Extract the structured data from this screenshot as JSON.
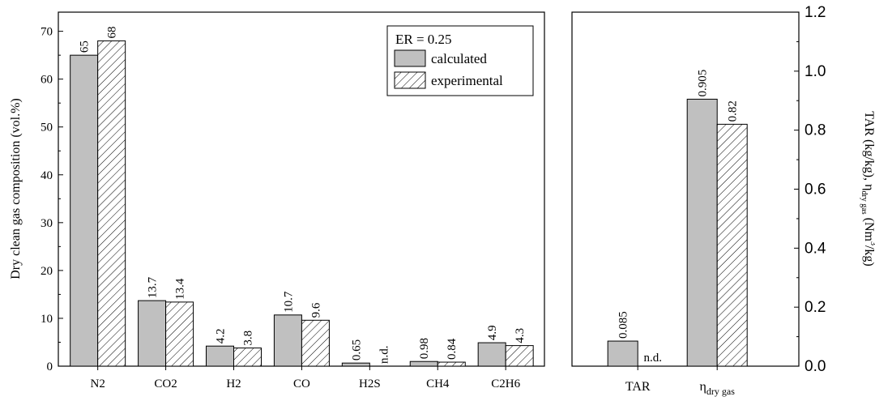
{
  "chart_data": [
    {
      "type": "bar",
      "categories": [
        "N2",
        "CO2",
        "H2",
        "CO",
        "H2S",
        "CH4",
        "C2H6"
      ],
      "series": [
        {
          "name": "calculated",
          "values": [
            65,
            13.7,
            4.2,
            10.7,
            0.65,
            0.98,
            4.9
          ],
          "labels": [
            "65",
            "13.7",
            "4.2",
            "10.7",
            "0.65",
            "0.98",
            "4.9"
          ]
        },
        {
          "name": "experimental",
          "values": [
            68,
            13.4,
            3.8,
            9.6,
            null,
            0.84,
            4.3
          ],
          "labels": [
            "68",
            "13.4",
            "3.8",
            "9.6",
            "n.d.",
            "0.84",
            "4.3"
          ]
        }
      ],
      "ylabel": "Dry clean gas composition (vol.%)",
      "ylim": [
        0,
        74
      ],
      "yticks": [
        0,
        10,
        20,
        30,
        40,
        50,
        60,
        70
      ],
      "legend": {
        "title": "ER = 0.25",
        "placement": "top-right"
      },
      "colors": {
        "calculated": "#c0c0c0",
        "experimental": "hatched"
      }
    },
    {
      "type": "bar",
      "categories": [
        "TAR",
        "η"
      ],
      "category_subscripts": [
        "",
        "dry gas"
      ],
      "series": [
        {
          "name": "calculated",
          "values": [
            0.085,
            0.905
          ],
          "labels": [
            "0.085",
            "0.905"
          ]
        },
        {
          "name": "experimental",
          "values": [
            null,
            0.82
          ],
          "labels": [
            "n.d.",
            "0.82"
          ]
        }
      ],
      "ylabel": {
        "prefix": "TAR (kg/kg), η",
        "sub": "dry gas",
        "mid": " (Nm",
        "sup": "3",
        "suffix": "/kg)"
      },
      "ylim": [
        0,
        1.2
      ],
      "yticks": [
        "0.0",
        "0.2",
        "0.4",
        "0.6",
        "0.8",
        "1.0",
        "1.2"
      ],
      "axis_side": "right"
    }
  ]
}
